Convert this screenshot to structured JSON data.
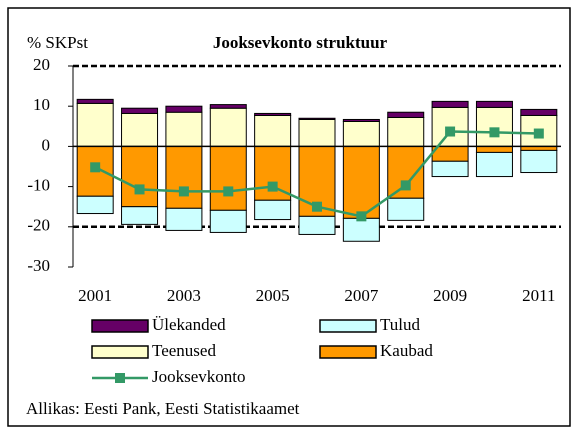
{
  "chart_data": {
    "type": "stacked_bar_line",
    "title": "Jooksevkonto struktuur",
    "ylabel": "% SKPst",
    "source": "Allikas: Eesti Pank, Eesti Statistikaamet",
    "categories": [
      "2001",
      null,
      "2003",
      null,
      "2005",
      null,
      "2007",
      null,
      "2009",
      null,
      "2011"
    ],
    "series": [
      {
        "name": "Ülekanded",
        "color": "#660066",
        "kind": "bar",
        "values": [
          1.0,
          1.3,
          1.5,
          0.9,
          0.5,
          0.3,
          0.5,
          1.3,
          1.5,
          1.5,
          1.5
        ]
      },
      {
        "name": "Tulud",
        "color": "#ccffff",
        "kind": "bar",
        "values": [
          -4.3,
          -4.4,
          -5.5,
          -5.5,
          -4.8,
          -4.5,
          -5.7,
          -5.5,
          -3.8,
          -6.0,
          -5.5
        ]
      },
      {
        "name": "Teenused",
        "color": "#ffffcc",
        "kind": "bar",
        "values": [
          10.7,
          8.2,
          8.5,
          9.5,
          7.7,
          6.7,
          6.2,
          7.2,
          9.7,
          9.7,
          7.7
        ]
      },
      {
        "name": "Kaubad",
        "color": "#ff9900",
        "kind": "bar",
        "values": [
          -12.4,
          -15.0,
          -15.4,
          -15.9,
          -13.4,
          -17.4,
          -17.9,
          -12.9,
          -3.7,
          -1.5,
          -1.0
        ]
      },
      {
        "name": "Jooksevkonto",
        "color": "#339966",
        "kind": "line",
        "values": [
          -5.2,
          -10.7,
          -11.2,
          -11.2,
          -10.0,
          -15.0,
          -17.4,
          -9.7,
          3.7,
          3.5,
          3.2
        ]
      }
    ],
    "ylim": [
      -30,
      20
    ],
    "yticks": [
      -30,
      -20,
      -10,
      0,
      10,
      20
    ],
    "grid_values": [
      -20,
      20
    ]
  }
}
